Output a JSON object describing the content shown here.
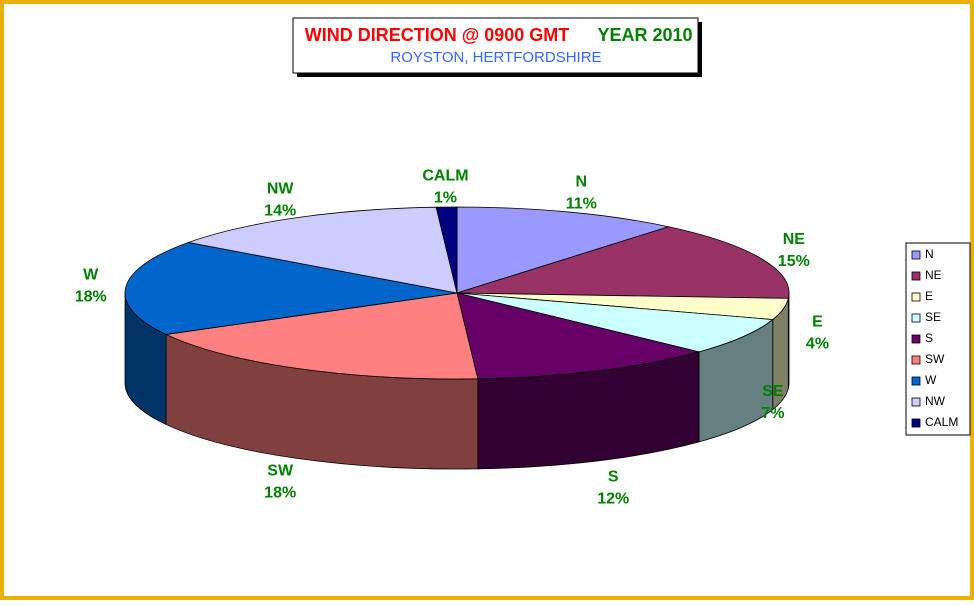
{
  "chart_data": {
    "type": "pie",
    "title": [
      "WIND DIRECTION @ 0900 GMT",
      "YEAR 2010"
    ],
    "subtitle": "ROYSTON, HERTFORDSHIRE",
    "categories": [
      "N",
      "NE",
      "E",
      "SE",
      "S",
      "SW",
      "W",
      "NW",
      "CALM"
    ],
    "values": [
      11,
      15,
      4,
      7,
      12,
      18,
      18,
      14,
      1
    ],
    "value_labels": [
      "11%",
      "15%",
      "4%",
      "7%",
      "12%",
      "18%",
      "18%",
      "14%",
      "1%"
    ],
    "colors": [
      "#9999ff",
      "#993366",
      "#ffffcc",
      "#ccffff",
      "#660066",
      "#ff8080",
      "#0066cc",
      "#ccccff",
      "#000080"
    ],
    "legend": "right"
  }
}
